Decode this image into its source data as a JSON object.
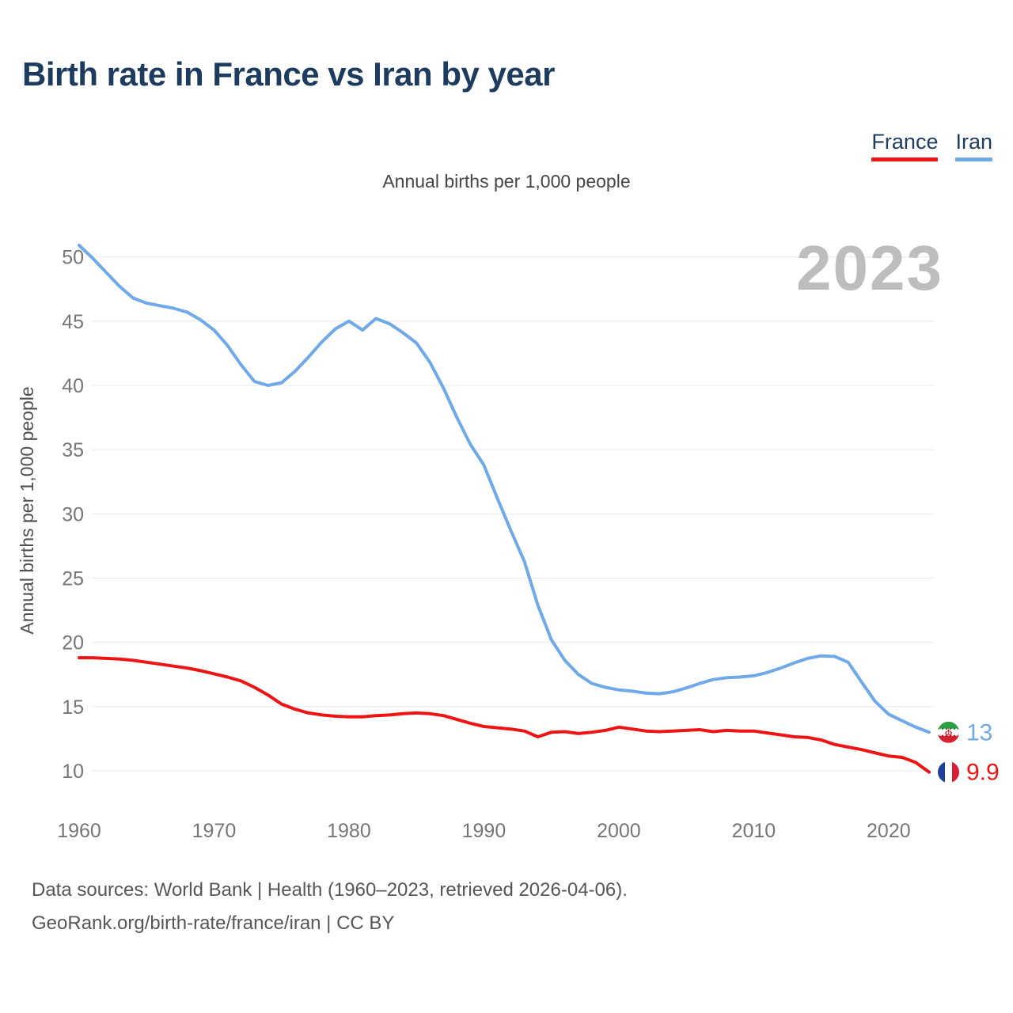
{
  "page": {
    "title": "Birth rate in France vs Iran by year",
    "watermark": "2023",
    "footer_line1": "Data sources: World Bank | Health (1960–2023, retrieved 2026-04-06).",
    "footer_line2": "GeoRank.org/birth-rate/france/iran | CC BY"
  },
  "legend": [
    {
      "label": "France",
      "color": "#ee1414"
    },
    {
      "label": "Iran",
      "color": "#6fa9e8"
    }
  ],
  "colors": {
    "france_line": "#ee1414",
    "iran_line": "#6fa9e8",
    "title_navy": "#1d3b5e",
    "grid": "#e9e9e9",
    "tick_text": "#767676",
    "axis_title_text": "#4f4f4f",
    "watermark_gray": "#bdbdbd",
    "iran_flag_green": "#2e9e45",
    "iran_flag_red": "#d8212f",
    "france_flag_blue": "#20409a",
    "france_flag_red": "#d81e34"
  },
  "chart_data": {
    "type": "line",
    "title": "Annual births per 1,000 people",
    "xlabel": "",
    "ylabel": "Annual births per 1,000 people",
    "xlim": [
      1960,
      2023
    ],
    "ylim": [
      10,
      50
    ],
    "grid": true,
    "legend_position": "top-right",
    "x_ticks": [
      1960,
      1970,
      1980,
      1990,
      2000,
      2010,
      2020
    ],
    "y_ticks": [
      10,
      15,
      20,
      25,
      30,
      35,
      40,
      45,
      50
    ],
    "x": [
      1960,
      1961,
      1962,
      1963,
      1964,
      1965,
      1966,
      1967,
      1968,
      1969,
      1970,
      1971,
      1972,
      1973,
      1974,
      1975,
      1976,
      1977,
      1978,
      1979,
      1980,
      1981,
      1982,
      1983,
      1984,
      1985,
      1986,
      1987,
      1988,
      1989,
      1990,
      1991,
      1992,
      1993,
      1994,
      1995,
      1996,
      1997,
      1998,
      1999,
      2000,
      2001,
      2002,
      2003,
      2004,
      2005,
      2006,
      2007,
      2008,
      2009,
      2010,
      2011,
      2012,
      2013,
      2014,
      2015,
      2016,
      2017,
      2018,
      2019,
      2020,
      2021,
      2022,
      2023
    ],
    "series": [
      {
        "name": "France",
        "color": "#ee1414",
        "end_label": "9.9",
        "flag": "france",
        "values": [
          18.8,
          18.8,
          18.75,
          18.7,
          18.6,
          18.45,
          18.3,
          18.15,
          18.0,
          17.8,
          17.55,
          17.3,
          17.0,
          16.5,
          15.9,
          15.2,
          14.8,
          14.5,
          14.35,
          14.25,
          14.2,
          14.2,
          14.3,
          14.35,
          14.45,
          14.5,
          14.45,
          14.3,
          14.0,
          13.7,
          13.45,
          13.35,
          13.25,
          13.1,
          12.65,
          13.0,
          13.05,
          12.9,
          13.0,
          13.15,
          13.4,
          13.25,
          13.1,
          13.05,
          13.1,
          13.15,
          13.2,
          13.05,
          13.15,
          13.1,
          13.1,
          12.95,
          12.8,
          12.65,
          12.6,
          12.4,
          12.05,
          11.85,
          11.65,
          11.4,
          11.15,
          11.05,
          10.65,
          9.9
        ]
      },
      {
        "name": "Iran",
        "color": "#6fa9e8",
        "end_label": "13",
        "flag": "iran",
        "values": [
          50.9,
          49.9,
          48.8,
          47.7,
          46.8,
          46.4,
          46.2,
          46.0,
          45.7,
          45.1,
          44.3,
          43.1,
          41.6,
          40.3,
          40.0,
          40.2,
          41.1,
          42.2,
          43.4,
          44.4,
          45.0,
          44.3,
          45.2,
          44.8,
          44.1,
          43.3,
          41.8,
          39.8,
          37.5,
          35.4,
          33.8,
          31.2,
          28.7,
          26.3,
          22.9,
          20.2,
          18.6,
          17.5,
          16.8,
          16.5,
          16.3,
          16.2,
          16.05,
          16.0,
          16.15,
          16.45,
          16.8,
          17.1,
          17.25,
          17.3,
          17.4,
          17.65,
          18.0,
          18.4,
          18.75,
          18.95,
          18.9,
          18.45,
          16.9,
          15.4,
          14.4,
          13.9,
          13.4,
          13.0
        ]
      }
    ]
  }
}
